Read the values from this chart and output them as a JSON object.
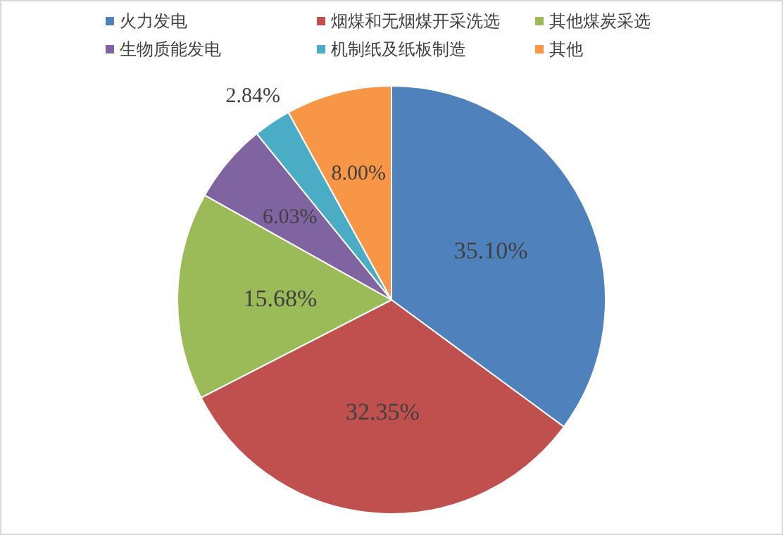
{
  "chart_data": {
    "type": "pie",
    "categories": [
      "火力发电",
      "烟煤和无烟煤开采洗选",
      "其他煤炭采选",
      "生物质能发电",
      "机制纸及纸板制造",
      "其他"
    ],
    "values": [
      35.1,
      32.35,
      15.68,
      6.03,
      2.84,
      8.0
    ],
    "colors": [
      "#4f81bd",
      "#c0504d",
      "#9bbb59",
      "#8064a2",
      "#4bacc6",
      "#f79646"
    ],
    "value_labels": [
      "35.10%",
      "32.35%",
      "15.68%",
      "6.03%",
      "2.84%",
      "8.00%"
    ],
    "legend": "top"
  }
}
